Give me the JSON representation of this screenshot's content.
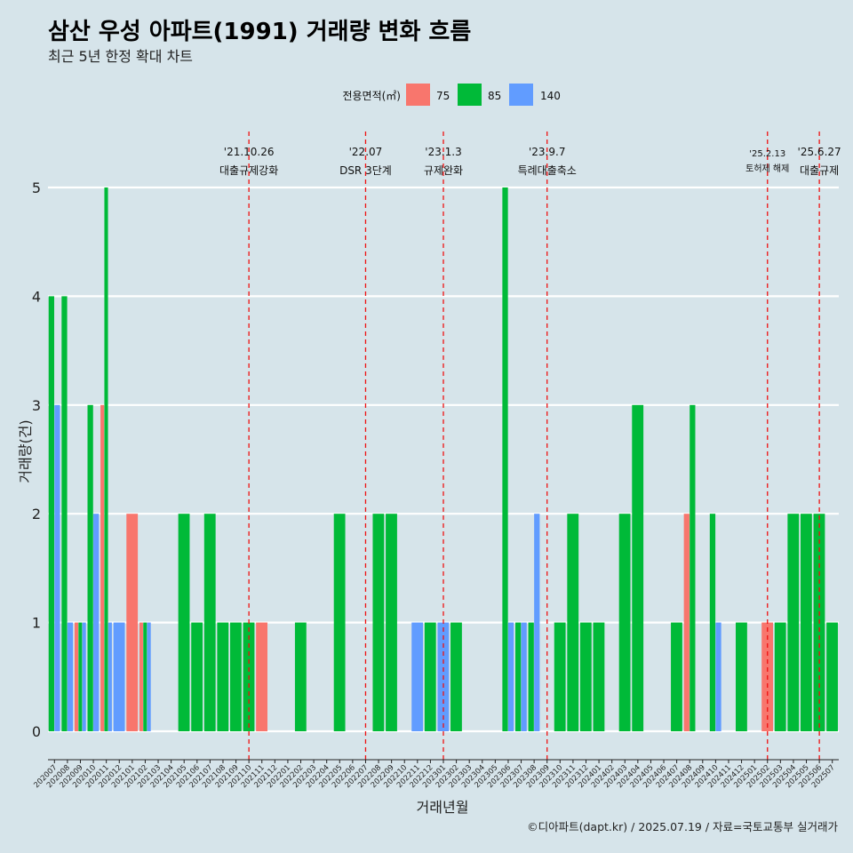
{
  "title": "삼산 우성 아파트(1991) 거래량 변화 흐름",
  "subtitle": "최근 5년 한정 확대 차트",
  "caption": "©디아파트(dapt.kr) / 2025.07.19 / 자료=국토교통부 실거래가",
  "chart_data": {
    "type": "bar",
    "xlabel": "거래년월",
    "ylabel": "거래량(건)",
    "ylim": [
      0,
      5
    ],
    "yticks": [
      0,
      1,
      2,
      3,
      4,
      5
    ],
    "grid": "horizontal",
    "legend": {
      "title": "전용면적(㎡)",
      "position": "top",
      "items": [
        {
          "name": "75",
          "color": "#f8766d"
        },
        {
          "name": "85",
          "color": "#00ba38"
        },
        {
          "name": "140",
          "color": "#619cff"
        }
      ]
    },
    "categories": [
      "202007",
      "202008",
      "202009",
      "202010",
      "202011",
      "202012",
      "202101",
      "202102",
      "202103",
      "202104",
      "202105",
      "202106",
      "202107",
      "202108",
      "202109",
      "202110",
      "202111",
      "202112",
      "202201",
      "202202",
      "202203",
      "202204",
      "202205",
      "202206",
      "202207",
      "202208",
      "202209",
      "202210",
      "202211",
      "202212",
      "202301",
      "202302",
      "202303",
      "202304",
      "202305",
      "202306",
      "202307",
      "202308",
      "202309",
      "202310",
      "202311",
      "202312",
      "202401",
      "202402",
      "202403",
      "202404",
      "202405",
      "202406",
      "202407",
      "202408",
      "202409",
      "202410",
      "202411",
      "202412",
      "202501",
      "202502",
      "202503",
      "202504",
      "202505",
      "202506",
      "202507"
    ],
    "series": [
      {
        "name": "75",
        "color": "#f8766d",
        "values": [
          0,
          0,
          1,
          0,
          3,
          0,
          2,
          1,
          0,
          0,
          0,
          0,
          0,
          0,
          0,
          0,
          1,
          0,
          0,
          0,
          0,
          0,
          0,
          0,
          0,
          0,
          0,
          0,
          0,
          0,
          0,
          0,
          0,
          0,
          0,
          0,
          0,
          0,
          0,
          0,
          0,
          0,
          0,
          0,
          0,
          0,
          0,
          0,
          0,
          2,
          0,
          0,
          0,
          0,
          0,
          1,
          0,
          0,
          0,
          0,
          0
        ]
      },
      {
        "name": "85",
        "color": "#00ba38",
        "values": [
          4,
          4,
          1,
          3,
          5,
          0,
          0,
          1,
          0,
          0,
          2,
          1,
          2,
          1,
          1,
          1,
          0,
          0,
          0,
          1,
          0,
          0,
          2,
          0,
          0,
          2,
          2,
          0,
          0,
          1,
          0,
          1,
          0,
          0,
          0,
          5,
          1,
          1,
          0,
          1,
          2,
          1,
          1,
          0,
          2,
          3,
          0,
          0,
          1,
          3,
          0,
          2,
          0,
          1,
          0,
          0,
          1,
          2,
          2,
          2,
          1
        ]
      },
      {
        "name": "140",
        "color": "#619cff",
        "values": [
          3,
          1,
          1,
          2,
          1,
          1,
          0,
          1,
          0,
          0,
          0,
          0,
          0,
          0,
          0,
          0,
          0,
          0,
          0,
          0,
          0,
          0,
          0,
          0,
          0,
          0,
          0,
          0,
          1,
          0,
          1,
          0,
          0,
          0,
          0,
          1,
          1,
          2,
          0,
          0,
          0,
          0,
          0,
          0,
          0,
          0,
          0,
          0,
          0,
          0,
          0,
          1,
          0,
          0,
          0,
          0,
          0,
          0,
          0,
          0,
          0
        ]
      }
    ],
    "events": [
      {
        "date": "'21.10.26",
        "label": "대출규제강화",
        "at": 15
      },
      {
        "date": "'22.07",
        "label": "DSR 3단계",
        "at": 24
      },
      {
        "date": "'23.1.3",
        "label": "규제완화",
        "at": 30
      },
      {
        "date": "'23.9.7",
        "label": "특례대출축소",
        "at": 38
      },
      {
        "date": "'25.2.13",
        "label": "토허제 해제",
        "at": 55,
        "small": true
      },
      {
        "date": "'25.6.27",
        "label": "대출규제",
        "at": 59
      }
    ]
  }
}
